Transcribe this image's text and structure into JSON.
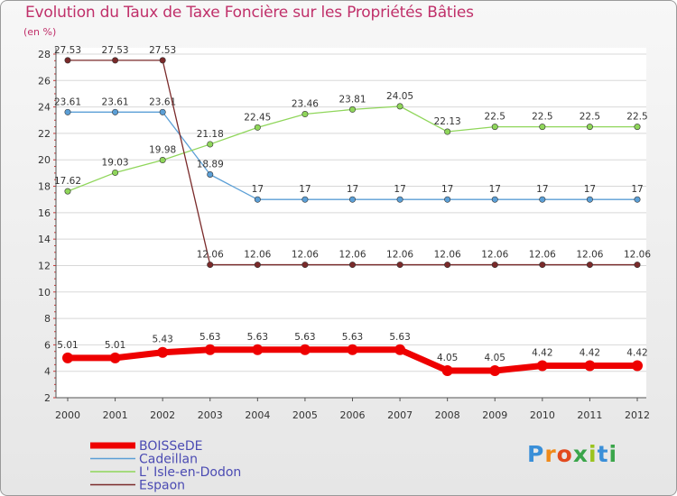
{
  "header": {
    "title": "Evolution du Taux de Taxe Foncière sur les Propriétés Bâties",
    "unit": "(en %)"
  },
  "logo": {
    "text": "Proxiti",
    "colors": [
      "#3a8fd8",
      "#f08a1a",
      "#e24a1e",
      "#3aa54a",
      "#9bc31e",
      "#3a8fd8",
      "#3aa54a"
    ]
  },
  "chart_data": {
    "type": "line",
    "title": "Evolution du Taux de Taxe Foncière sur les Propriétés Bâties",
    "ylabel": "(en %)",
    "xlabel": "",
    "ylim": [
      2,
      28
    ],
    "yticks": [
      2,
      4,
      6,
      8,
      10,
      12,
      14,
      16,
      18,
      20,
      22,
      24,
      26,
      28
    ],
    "grid": "horizontal",
    "x": [
      "2000",
      "2001",
      "2002",
      "2003",
      "2004",
      "2005",
      "2006",
      "2007",
      "2008",
      "2009",
      "2010",
      "2011",
      "2012"
    ],
    "series": [
      {
        "name": "BOISSeDE",
        "color": "#ee0000",
        "values": [
          5.01,
          5.01,
          5.43,
          5.63,
          5.63,
          5.63,
          5.63,
          5.63,
          4.05,
          4.05,
          4.42,
          4.42,
          4.42
        ],
        "labels": [
          "5.01",
          "5.01",
          "5.43",
          "5.63",
          "5.63",
          "5.63",
          "5.63",
          "5.63",
          "4.05",
          "4.05",
          "4.42",
          "4.42",
          "4.42"
        ]
      },
      {
        "name": "Cadeillan",
        "color": "#5b9fd6",
        "values": [
          23.61,
          23.61,
          23.61,
          18.89,
          17,
          17,
          17,
          17,
          17,
          17,
          17,
          17,
          17
        ],
        "labels": [
          "23.61",
          "23.61",
          "23.61",
          "18.89",
          "17",
          "17",
          "17",
          "17",
          "17",
          "17",
          "17",
          "17",
          "17"
        ]
      },
      {
        "name": "L' Isle-en-Dodon",
        "color": "#8fd65a",
        "values": [
          17.62,
          19.03,
          19.98,
          21.18,
          22.45,
          23.46,
          23.81,
          24.05,
          22.13,
          22.5,
          22.5,
          22.5,
          22.5
        ],
        "labels": [
          "17.62",
          "19.03",
          "19.98",
          "21.18",
          "22.45",
          "23.46",
          "23.81",
          "24.05",
          "22.13",
          "22.5",
          "22.5",
          "22.5",
          "22.5"
        ]
      },
      {
        "name": "Espaon",
        "color": "#7a2a2a",
        "values": [
          27.53,
          27.53,
          27.53,
          12.06,
          12.06,
          12.06,
          12.06,
          12.06,
          12.06,
          12.06,
          12.06,
          12.06,
          12.06
        ],
        "labels": [
          "27.53",
          "27.53",
          "27.53",
          "12.06",
          "12.06",
          "12.06",
          "12.06",
          "12.06",
          "12.06",
          "12.06",
          "12.06",
          "12.06",
          "12.06"
        ]
      }
    ]
  }
}
